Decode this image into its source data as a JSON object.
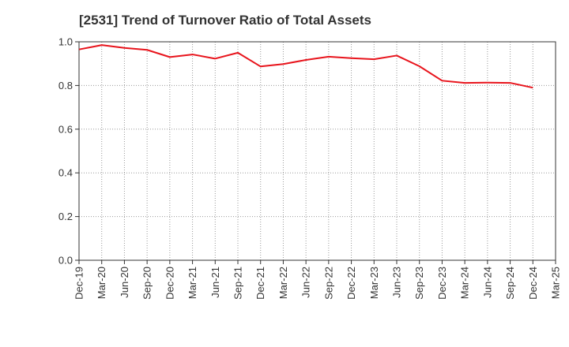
{
  "chart_data": {
    "type": "line",
    "title": "[2531]  Trend of Turnover Ratio of Total Assets",
    "xlabel": "",
    "ylabel": "",
    "ylim": [
      0,
      1.0
    ],
    "y_ticks": [
      "0.0",
      "0.2",
      "0.4",
      "0.6",
      "0.8",
      "1.0"
    ],
    "x_tick_labels": [
      "Dec-19",
      "Mar-20",
      "Jun-20",
      "Sep-20",
      "Dec-20",
      "Mar-21",
      "Jun-21",
      "Sep-21",
      "Dec-21",
      "Mar-22",
      "Jun-22",
      "Sep-22",
      "Dec-22",
      "Mar-23",
      "Jun-23",
      "Sep-23",
      "Dec-23",
      "Mar-24",
      "Jun-24",
      "Sep-24",
      "Dec-24",
      "Mar-25"
    ],
    "grid": true,
    "series": [
      {
        "color": "#e8141c",
        "x": [
          "Dec-19",
          "Mar-20",
          "Jun-20",
          "Sep-20",
          "Dec-20",
          "Mar-21",
          "Jun-21",
          "Sep-21",
          "Dec-21",
          "Mar-22",
          "Jun-22",
          "Sep-22",
          "Dec-22",
          "Mar-23",
          "Jun-23",
          "Sep-23",
          "Dec-23",
          "Mar-24",
          "Jun-24",
          "Sep-24",
          "Dec-24"
        ],
        "values": [
          0.965,
          0.985,
          0.972,
          0.963,
          0.93,
          0.942,
          0.923,
          0.95,
          0.887,
          0.898,
          0.917,
          0.932,
          0.925,
          0.92,
          0.937,
          0.888,
          0.822,
          0.812,
          0.813,
          0.812,
          0.79
        ]
      }
    ]
  }
}
